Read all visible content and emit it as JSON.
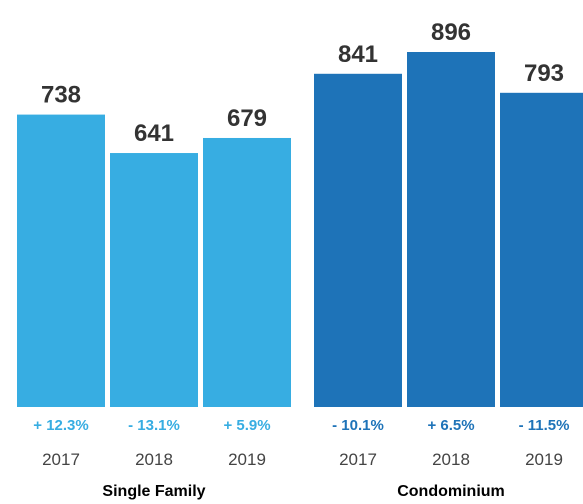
{
  "chart_data": {
    "type": "bar",
    "groups": [
      {
        "name": "Single Family",
        "color": "#37ade2",
        "years": [
          "2017",
          "2018",
          "2019"
        ],
        "values": [
          738,
          641,
          679
        ],
        "changes": [
          "+ 12.3%",
          "- 13.1%",
          "+ 5.9%"
        ]
      },
      {
        "name": "Condominium",
        "color": "#1e73b8",
        "years": [
          "2017",
          "2018",
          "2019"
        ],
        "values": [
          841,
          896,
          793
        ],
        "changes": [
          "- 10.1%",
          "+ 6.5%",
          "- 11.5%"
        ]
      }
    ],
    "change_colors": {
      "Single Family": "#37ade2",
      "Condominium": "#1e73b8"
    },
    "ylim": [
      0,
      896
    ]
  }
}
